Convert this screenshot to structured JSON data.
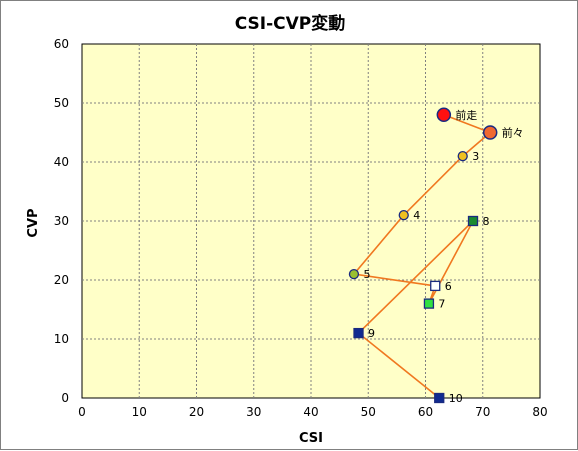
{
  "chart_data": {
    "type": "scatter",
    "title": "CSI-CVP変動",
    "xlabel": "CSI",
    "ylabel": "CVP",
    "xlim": [
      0,
      80
    ],
    "ylim": [
      0,
      60
    ],
    "xticks": [
      0,
      10,
      20,
      30,
      40,
      50,
      60,
      70,
      80
    ],
    "yticks": [
      0,
      10,
      20,
      30,
      40,
      50,
      60
    ],
    "grid": true,
    "colors": {
      "plot_background": "#FFFFC8",
      "grid": "#808080",
      "line": "#F07820",
      "marker_border": "#1A2A80"
    },
    "points": [
      {
        "label": "前走",
        "x": 63.2,
        "y": 48,
        "marker": "circle-large",
        "fill": "#FF1010"
      },
      {
        "label": "前々",
        "x": 71.3,
        "y": 45,
        "marker": "circle-large",
        "fill": "#F06830"
      },
      {
        "label": "3",
        "x": 66.5,
        "y": 41,
        "marker": "circle",
        "fill": "#F0C020"
      },
      {
        "label": "4",
        "x": 56.2,
        "y": 31,
        "marker": "circle",
        "fill": "#F0C020"
      },
      {
        "label": "5",
        "x": 47.5,
        "y": 21,
        "marker": "circle",
        "fill": "#9AC030"
      },
      {
        "label": "6",
        "x": 61.7,
        "y": 19,
        "marker": "square",
        "fill": "#FFFFFF"
      },
      {
        "label": "7",
        "x": 60.6,
        "y": 16,
        "marker": "square",
        "fill": "#30E040"
      },
      {
        "label": "8",
        "x": 68.3,
        "y": 30,
        "marker": "square",
        "fill": "#1A8A30"
      },
      {
        "label": "9",
        "x": 48.3,
        "y": 11,
        "marker": "square",
        "fill": "#102A90"
      },
      {
        "label": "10",
        "x": 62.4,
        "y": 0,
        "marker": "square",
        "fill": "#102A90"
      }
    ]
  }
}
